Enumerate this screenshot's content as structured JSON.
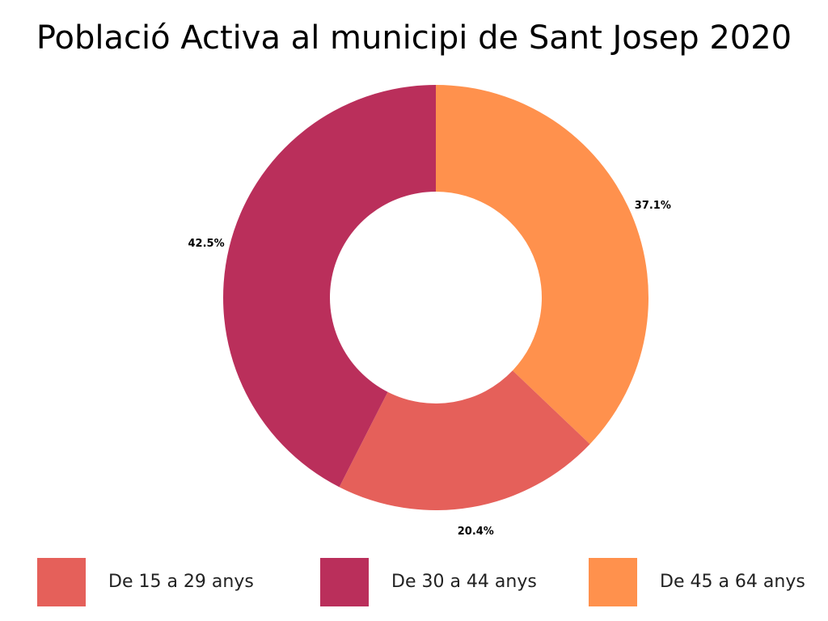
{
  "chart_data": {
    "type": "pie",
    "donut": true,
    "title": "Població Activa al municipi de Sant Josep 2020",
    "slices": [
      {
        "label": "De 45 a 64 anys",
        "value": 37.1,
        "display": "37.1%",
        "color": "#FF914D"
      },
      {
        "label": "De 15 a 29 anys",
        "value": 20.4,
        "display": "20.4%",
        "color": "#E5605A"
      },
      {
        "label": "De 30 a 44 anys",
        "value": 42.5,
        "display": "42.5%",
        "color": "#BA2F5B"
      }
    ],
    "legend": {
      "placement": "bottom",
      "items": [
        {
          "label": "De 15 a 29 anys",
          "color": "#E5605A"
        },
        {
          "label": "De 30 a 44 anys",
          "color": "#BA2F5B"
        },
        {
          "label": "De 45 a 64 anys",
          "color": "#FF914D"
        }
      ]
    }
  }
}
